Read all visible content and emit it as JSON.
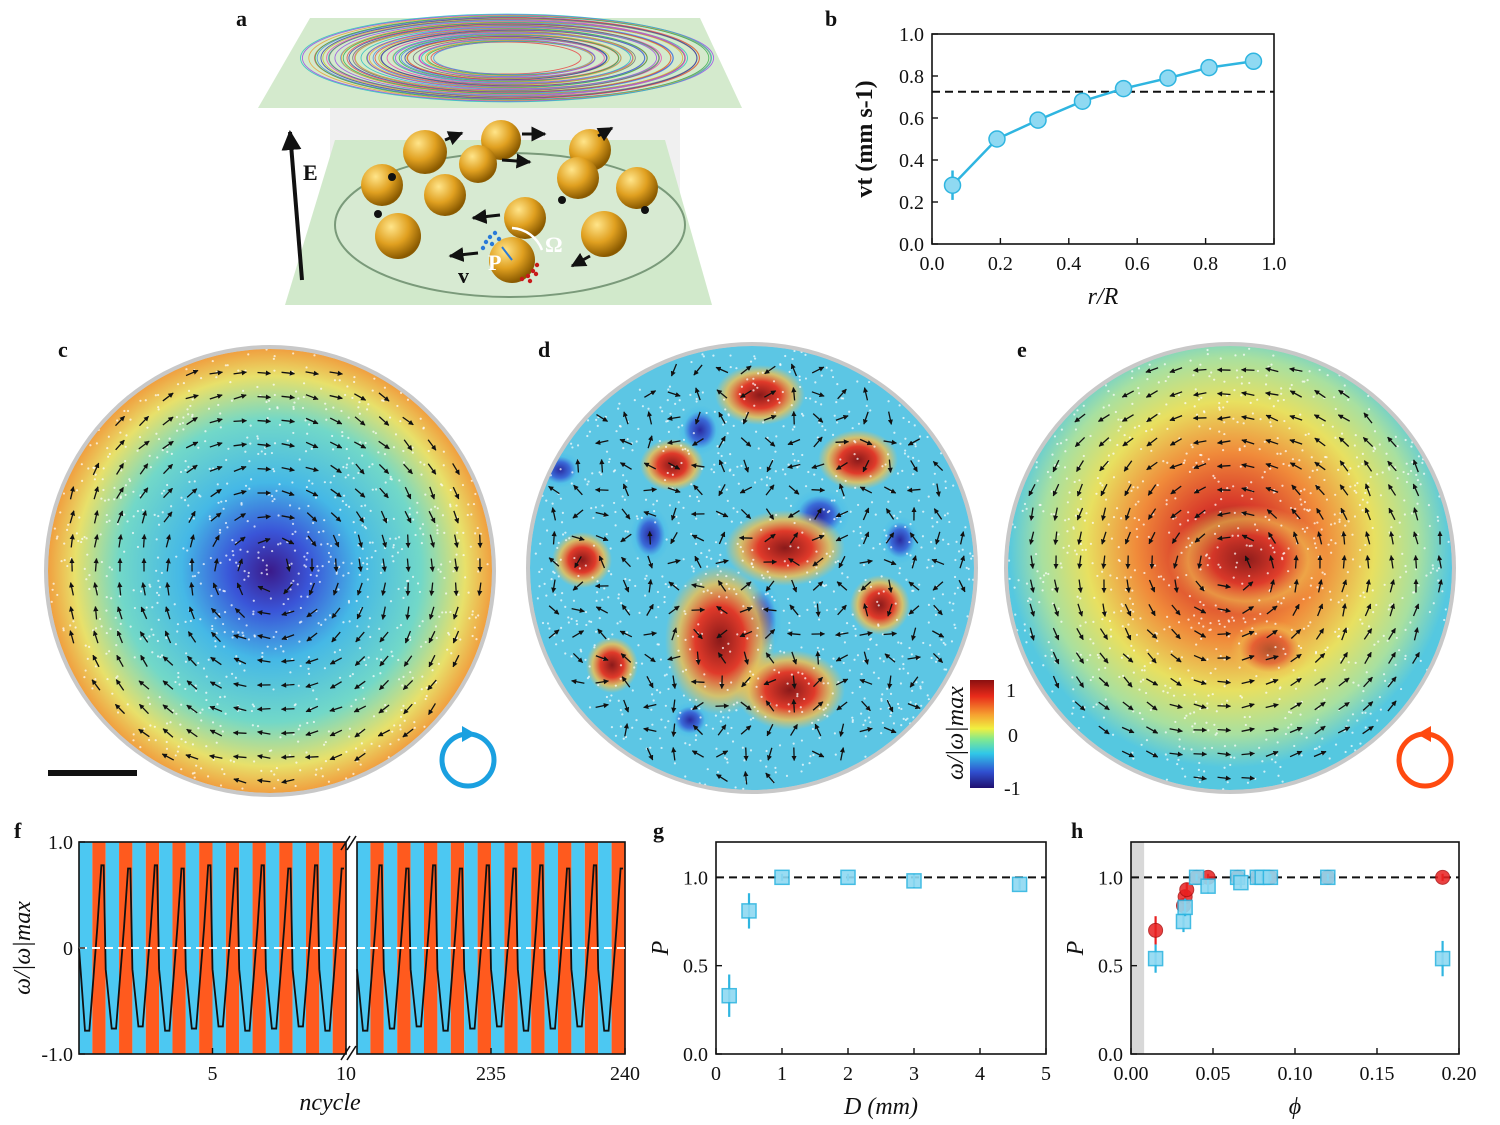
{
  "panels": {
    "a": {
      "letter": "a",
      "E_label": "E",
      "v_label": "v",
      "P_label": "P",
      "Omega_label": "Ω"
    },
    "b": {
      "letter": "b"
    },
    "c": {
      "letter": "c"
    },
    "d": {
      "letter": "d"
    },
    "e": {
      "letter": "e"
    },
    "f": {
      "letter": "f"
    },
    "g": {
      "letter": "g"
    },
    "h": {
      "letter": "h"
    }
  },
  "colorbar": {
    "label": "ω/|ω|max",
    "ticks": [
      "1",
      "0",
      "-1"
    ]
  },
  "colors": {
    "cyan": "#2fb5e0",
    "cyan_fill": "#8fd9f2",
    "orange": "#ff5a14",
    "red": "#e82020",
    "blue_band": "#4cc8f2",
    "orange_band": "#ff5a1e",
    "green_plane": "#cfe8c8"
  },
  "chart_data": [
    {
      "id": "b",
      "type": "line",
      "x": [
        0.06,
        0.19,
        0.31,
        0.44,
        0.56,
        0.69,
        0.81,
        0.94
      ],
      "y": [
        0.28,
        0.5,
        0.59,
        0.68,
        0.74,
        0.79,
        0.84,
        0.87
      ],
      "yerr": [
        0.07,
        0.03,
        0.03,
        0.03,
        0.02,
        0.02,
        0.02,
        0.02
      ],
      "hline": 0.725,
      "xlim": [
        0.0,
        1.0
      ],
      "ylim": [
        0.0,
        1.0
      ],
      "xticks": [
        "0.0",
        "0.2",
        "0.4",
        "0.6",
        "0.8",
        "1.0"
      ],
      "yticks": [
        "0.0",
        "0.2",
        "0.4",
        "0.6",
        "0.8",
        "1.0"
      ],
      "xlabel": "r/R",
      "ylabel": "vt (mm s-1)"
    },
    {
      "id": "f",
      "type": "line",
      "ylim": [
        -1.0,
        1.0
      ],
      "yticks": [
        "-1.0",
        "0",
        "1.0"
      ],
      "xticks_left": [
        "5",
        "10"
      ],
      "xticks_right": [
        "235",
        "240"
      ],
      "xlabel": "ncycle",
      "ylabel": "ω/|ω|max",
      "left_cycles": [
        1,
        10
      ],
      "right_cycles": [
        231,
        240
      ],
      "high_value": 0.78,
      "low_value": -0.78
    },
    {
      "id": "g",
      "type": "scatter",
      "x": [
        0.2,
        0.5,
        1.0,
        2.0,
        3.0,
        4.6
      ],
      "y": [
        0.33,
        0.81,
        1.0,
        1.0,
        0.98,
        0.96
      ],
      "yerr": [
        0.12,
        0.1,
        0.02,
        0.02,
        0.04,
        0.03
      ],
      "hline": 1.0,
      "xlim": [
        0,
        5
      ],
      "ylim": [
        0.0,
        1.2
      ],
      "xticks": [
        "0",
        "1",
        "2",
        "3",
        "4",
        "5"
      ],
      "yticks": [
        "0.0",
        "0.5",
        "1.0"
      ],
      "xlabel": "D (mm)",
      "ylabel": "P"
    },
    {
      "id": "h",
      "type": "scatter",
      "series": [
        {
          "name": "cyan squares",
          "x": [
            0.015,
            0.032,
            0.033,
            0.04,
            0.047,
            0.065,
            0.067,
            0.077,
            0.08,
            0.085,
            0.12,
            0.19
          ],
          "y": [
            0.54,
            0.75,
            0.83,
            1.0,
            0.95,
            1.0,
            0.97,
            1.0,
            1.0,
            1.0,
            1.0,
            0.54
          ],
          "yerr": [
            0.08,
            0.06,
            0.05,
            0.02,
            0.04,
            0.02,
            0.03,
            0.02,
            0.02,
            0.02,
            0.02,
            0.1
          ]
        },
        {
          "name": "red circles",
          "x": [
            0.015,
            0.032,
            0.033,
            0.034,
            0.04,
            0.047,
            0.065,
            0.077,
            0.085,
            0.12,
            0.19
          ],
          "y": [
            0.7,
            0.84,
            0.89,
            0.93,
            1.0,
            1.0,
            1.0,
            1.0,
            1.0,
            1.0,
            1.0
          ],
          "yerr": [
            0.08,
            0.04,
            0.04,
            0.04,
            0.02,
            0.02,
            0.02,
            0.02,
            0.02,
            0.02,
            0.02
          ]
        }
      ],
      "hline": 1.0,
      "shade_x": [
        0.0,
        0.008
      ],
      "xlim": [
        0.0,
        0.2
      ],
      "ylim": [
        0.0,
        1.2
      ],
      "xticks": [
        "0.00",
        "0.05",
        "0.10",
        "0.15",
        "0.20"
      ],
      "yticks": [
        "0.0",
        "0.5",
        "1.0"
      ],
      "xlabel": "ϕ",
      "ylabel": "P"
    }
  ]
}
